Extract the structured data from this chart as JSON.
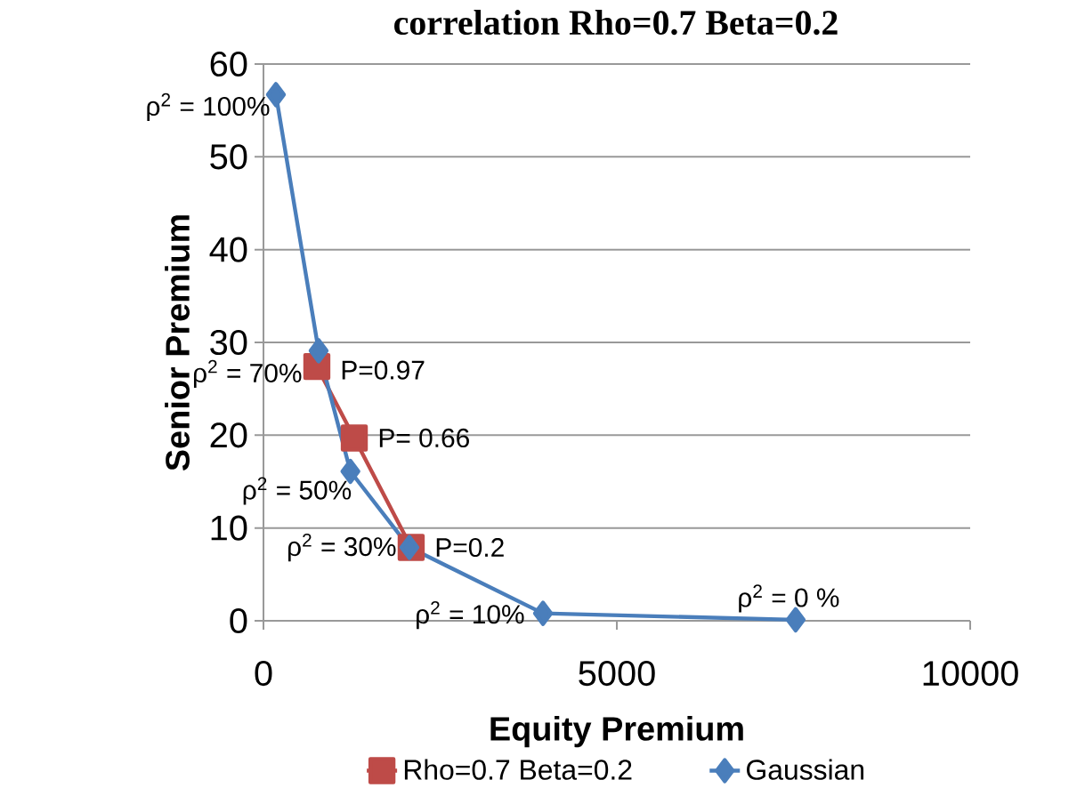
{
  "chart_data": {
    "type": "line",
    "title": "correlation Rho=0.7 Beta=0.2",
    "xlabel": "Equity Premium",
    "ylabel": "Senior Premium",
    "series": [
      {
        "name": "Rho=0.7 Beta=0.2",
        "color": "#be4b48",
        "marker": "square",
        "x": [
          755,
          1285,
          2090
        ],
        "values": [
          27.4,
          19.7,
          7.9
        ]
      },
      {
        "name": "Gaussian",
        "color": "#4a7ebb",
        "marker": "diamond",
        "x": [
          176,
          780,
          1230,
          2065,
          3955,
          7530
        ],
        "values": [
          56.7,
          29.1,
          16.1,
          7.9,
          0.8,
          0.1
        ]
      }
    ],
    "annotations": [
      {
        "text": "ρ$^{2}$ = 100%",
        "x": 176,
        "y": 56.7
      },
      {
        "text": "ρ$^{2}$ = 70%",
        "x": 780,
        "y": 29.1
      },
      {
        "text": "ρ$^{2}$ = 50%",
        "x": 1230,
        "y": 16.1
      },
      {
        "text": "ρ$^{2}$ = 30%",
        "x": 2065,
        "y": 7.9
      },
      {
        "text": "ρ$^{2}$ = 10%",
        "x": 3955,
        "y": 0.8
      },
      {
        "text": "ρ$^{2}$ = 0 %",
        "x": 7530,
        "y": 0.1
      },
      {
        "text": "P=0.97",
        "x": 755,
        "y": 27.4
      },
      {
        "text": "P= 0.66",
        "x": 1285,
        "y": 19.7
      },
      {
        "text": "P=0.2",
        "x": 2090,
        "y": 7.9
      }
    ],
    "xlim": [
      0,
      10000
    ],
    "xticks": [
      0,
      5000,
      10000
    ],
    "ylim": [
      0,
      60
    ],
    "yticks": [
      0,
      10,
      20,
      30,
      40,
      50,
      60
    ],
    "grid": "y",
    "legend": "bottom",
    "line_style": "solid"
  }
}
